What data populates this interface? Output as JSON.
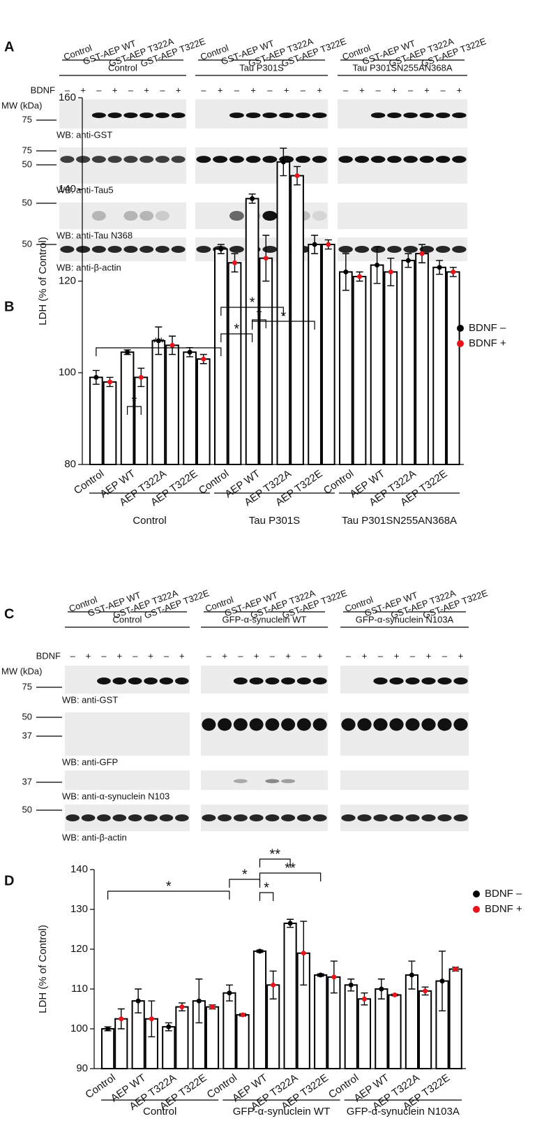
{
  "panel_a": {
    "label": "A",
    "lanes": [
      "Control",
      "GST-AEP WT",
      "GST-AEP T322A",
      "GST-AEP T322E"
    ],
    "groups": [
      "Control",
      "Tau P301S",
      "Tau P301SN255AN368A"
    ],
    "bdnf": "BDNF",
    "signs": [
      "–",
      "+"
    ],
    "mw": "MW (kDa)",
    "blots": [
      {
        "label": "WB: anti-GST",
        "markers": [
          "75"
        ]
      },
      {
        "label": "WB: anti-Tau5",
        "markers": [
          "75",
          "50"
        ]
      },
      {
        "label": "WB: anti-Tau N368",
        "markers": [
          "50"
        ]
      },
      {
        "label": "WB: anti-β-actin",
        "markers": [
          "50"
        ]
      }
    ]
  },
  "panel_c": {
    "label": "C",
    "lanes": [
      "Control",
      "GST-AEP WT",
      "GST-AEP T322A",
      "GST-AEP T322E"
    ],
    "groups": [
      "Control",
      "GFP-α-synuclein WT",
      "GFP-α-synuclein N103A"
    ],
    "bdnf": "BDNF",
    "signs": [
      "–",
      "+"
    ],
    "mw": "MW (kDa)",
    "blots": [
      {
        "label": "WB: anti-GST",
        "markers": [
          "75"
        ]
      },
      {
        "label": "WB: anti-GFP",
        "markers": [
          "50",
          "37"
        ]
      },
      {
        "label": "WB: anti-α-synuclein N103",
        "markers": [
          "37"
        ]
      },
      {
        "label": "WB: anti-β-actin",
        "markers": [
          "50"
        ]
      }
    ]
  },
  "chart_data": [
    {
      "type": "bar",
      "label": "B",
      "y_label": "LDH (% of Control)",
      "categories": [
        "Control",
        "AEP WT",
        "AEP T322A",
        "AEP T322E",
        "Control",
        "AEP WT",
        "AEP T322A",
        "AEP T322E",
        "Control",
        "AEP WT",
        "AEP T322A",
        "AEP T322E"
      ],
      "groups": [
        "Control",
        "Tau P301S",
        "Tau P301SN255AN368A"
      ],
      "series": [
        {
          "name": "BDNF –",
          "color": "#000000",
          "values": [
            99,
            104.5,
            107,
            104.5,
            127,
            138,
            146,
            128,
            122,
            123.5,
            124.5,
            123
          ],
          "errors": [
            1.5,
            0.5,
            3,
            1,
            1,
            1,
            3,
            2,
            4,
            4,
            1.5,
            1.5
          ]
        },
        {
          "name": "BDNF +",
          "color": "#e8141b",
          "values": [
            98,
            99,
            106,
            103,
            124,
            125,
            143,
            128,
            121,
            122,
            126,
            122
          ],
          "errors": [
            1,
            2,
            2,
            1,
            2,
            5,
            2,
            1,
            1,
            3,
            2,
            1
          ]
        }
      ],
      "annotations": [
        "**",
        "*",
        "*",
        "*",
        "*",
        "*"
      ],
      "ylim": [
        80,
        160
      ],
      "yticks": [
        80,
        100,
        120,
        140,
        160
      ],
      "legend": "upper right"
    },
    {
      "type": "bar",
      "label": "D",
      "y_label": "LDH (% of Control)",
      "categories": [
        "Control",
        "AEP WT",
        "AEP T322A",
        "AEP T322E",
        "Control",
        "AEP WT",
        "AEP T322A",
        "AEP T322E",
        "Control",
        "AEP WT",
        "AEP T322A",
        "AEP T322E"
      ],
      "groups": [
        "Control",
        "GFP-α-synuclein WT",
        "GFP-α-synuclein N103A"
      ],
      "series": [
        {
          "name": "BDNF –",
          "color": "#000000",
          "values": [
            100,
            107,
            100.5,
            107,
            109,
            119.5,
            126.5,
            113.5,
            111,
            110,
            113.5,
            112
          ],
          "errors": [
            0.5,
            3,
            1,
            5.5,
            2,
            0.3,
            1,
            0.3,
            1.5,
            2.5,
            3.5,
            7.5
          ]
        },
        {
          "name": "BDNF +",
          "color": "#e8141b",
          "values": [
            102.5,
            102.5,
            105.5,
            105.5,
            103.5,
            111,
            119,
            113,
            107.5,
            108.5,
            109.5,
            115
          ],
          "errors": [
            2.5,
            4.5,
            1,
            0.5,
            0.3,
            3.5,
            8,
            4,
            1.5,
            0.2,
            1,
            0.5
          ]
        }
      ],
      "annotations": [
        "*",
        "*",
        "*",
        "**",
        "**"
      ],
      "ylim": [
        90,
        140
      ],
      "yticks": [
        90,
        100,
        110,
        120,
        130,
        140
      ],
      "legend": "upper right"
    }
  ]
}
